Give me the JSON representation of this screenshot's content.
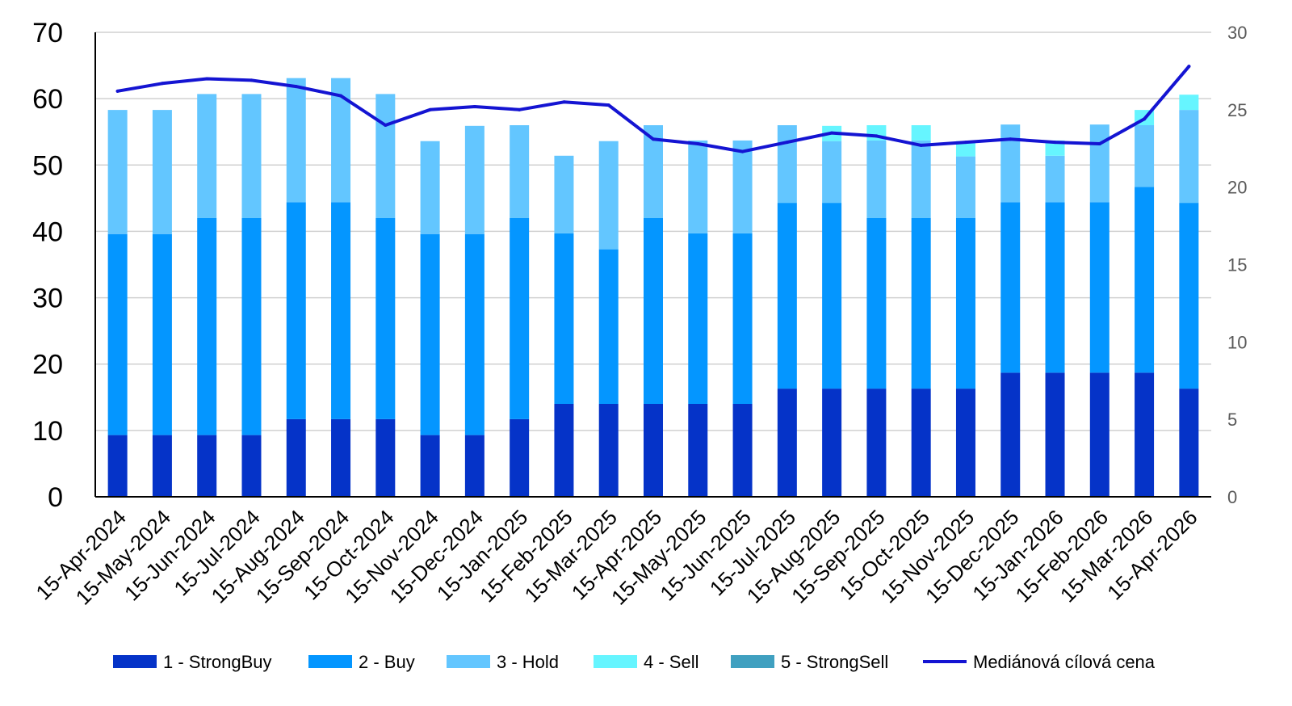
{
  "chart_data": {
    "type": "bar",
    "stacked": true,
    "categories": [
      "15-Apr-2024",
      "15-May-2024",
      "15-Jun-2024",
      "15-Jul-2024",
      "15-Aug-2024",
      "15-Sep-2024",
      "15-Oct-2024",
      "15-Nov-2024",
      "15-Dec-2024",
      "15-Jan-2025",
      "15-Feb-2025",
      "15-Mar-2025",
      "15-Apr-2025",
      "15-May-2025",
      "15-Jun-2025",
      "15-Jul-2025",
      "15-Aug-2025",
      "15-Sep-2025",
      "15-Oct-2025",
      "15-Nov-2025",
      "15-Dec-2025",
      "15-Jan-2026",
      "15-Feb-2026",
      "15-Mar-2026",
      "15-Apr-2026"
    ],
    "series": [
      {
        "name": "1 - StrongBuy",
        "color": "#0533C8",
        "values": [
          9.3,
          9.3,
          9.3,
          9.3,
          11.7,
          11.7,
          11.7,
          9.3,
          9.3,
          11.7,
          14.0,
          14.0,
          14.0,
          14.0,
          14.0,
          16.3,
          16.3,
          16.3,
          16.3,
          16.3,
          18.7,
          18.7,
          18.7,
          18.7,
          16.3
        ]
      },
      {
        "name": "2 - Buy",
        "color": "#0496FF",
        "values": [
          30.3,
          30.3,
          32.7,
          32.7,
          32.7,
          32.7,
          30.3,
          30.3,
          30.3,
          30.3,
          25.7,
          23.3,
          28.0,
          25.7,
          25.7,
          28.0,
          28.0,
          25.7,
          25.7,
          25.7,
          25.7,
          25.7,
          25.7,
          28.0,
          28.0
        ]
      },
      {
        "name": "3 - Hold",
        "color": "#63C6FF",
        "values": [
          18.7,
          18.7,
          18.7,
          18.7,
          18.7,
          18.7,
          18.7,
          14.0,
          16.3,
          14.0,
          11.7,
          16.3,
          14.0,
          14.0,
          14.0,
          11.7,
          9.3,
          11.7,
          11.7,
          9.3,
          11.7,
          7.0,
          11.7,
          9.3,
          14.0
        ]
      },
      {
        "name": "4 - Sell",
        "color": "#66F5FF",
        "values": [
          0,
          0,
          0,
          0,
          0,
          0,
          0,
          0,
          0,
          0,
          0,
          0,
          0,
          0,
          0,
          0,
          2.3,
          2.3,
          2.3,
          2.3,
          0,
          2.3,
          0,
          2.3,
          2.3
        ]
      },
      {
        "name": "5 - StrongSell",
        "color": "#40A0C0",
        "values": [
          0,
          0,
          0,
          0,
          0,
          0,
          0,
          0,
          0,
          0,
          0,
          0,
          0,
          0,
          0,
          0,
          0,
          0,
          0,
          0,
          0,
          0,
          0,
          0,
          0
        ]
      }
    ],
    "line": {
      "name": "Mediánová cílová cena",
      "color": "#1414D2",
      "axis": "right",
      "values": [
        26.2,
        26.7,
        27.0,
        26.9,
        26.5,
        25.9,
        24.0,
        25.0,
        25.2,
        25.0,
        25.5,
        25.3,
        23.1,
        22.8,
        22.3,
        22.9,
        23.5,
        23.3,
        22.7,
        22.9,
        23.1,
        22.9,
        22.8,
        24.4,
        27.8
      ]
    },
    "left_axis": {
      "ylim": [
        0,
        70
      ],
      "ticks": [
        "0",
        "10",
        "20",
        "30",
        "40",
        "50",
        "60",
        "70"
      ]
    },
    "right_axis": {
      "ylim": [
        0,
        30
      ],
      "ticks": [
        "0",
        "5",
        "10",
        "15",
        "20",
        "25",
        "30"
      ]
    },
    "grid": true,
    "legend_position": "bottom",
    "title": "",
    "xlabel": "",
    "ylabel": ""
  }
}
